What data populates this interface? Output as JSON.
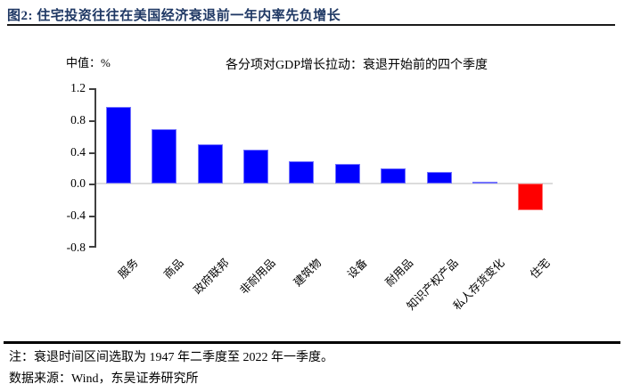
{
  "figure": {
    "title": "图2: 住宅投资往往在美国经济衰退前一年内率先负增长"
  },
  "chart_data": {
    "type": "bar",
    "title": "各分项对GDP增长拉动：衰退开始前的四个季度",
    "unit_label": "中值：%",
    "categories": [
      "服务",
      "商品",
      "政府联邦",
      "非耐用品",
      "建筑物",
      "设备",
      "耐用品",
      "知识产权产品",
      "私人存货变化",
      "住宅"
    ],
    "values": [
      0.97,
      0.69,
      0.5,
      0.43,
      0.28,
      0.25,
      0.19,
      0.15,
      0.03,
      -0.33
    ],
    "bar_colors": [
      "#0000FE",
      "#0000FE",
      "#0000FE",
      "#0000FE",
      "#0000FE",
      "#0000FE",
      "#0000FE",
      "#0000FE",
      "#0000FE",
      "#FE0000"
    ],
    "highlight_category": "住宅",
    "ylim": [
      -0.8,
      1.2
    ],
    "yticks": [
      1.2,
      0.8,
      0.4,
      0.0,
      -0.4,
      -0.8
    ],
    "xlabel": "",
    "ylabel": "中值：%",
    "legend": "none",
    "grid": "none",
    "zero_baseline": true,
    "colors": {
      "bar_blue": "#0000FE",
      "bar_red": "#FE0000",
      "axis": "#404040",
      "zero_line": "#DCDCDC",
      "figure_title": "#1F3864",
      "rule": "#000000",
      "text": "#000000"
    }
  },
  "notes": {
    "note": "注：衰退时间区间选取为 1947 年二季度至 2022 年一季度。",
    "source": "数据来源：Wind，东吴证券研究所"
  }
}
